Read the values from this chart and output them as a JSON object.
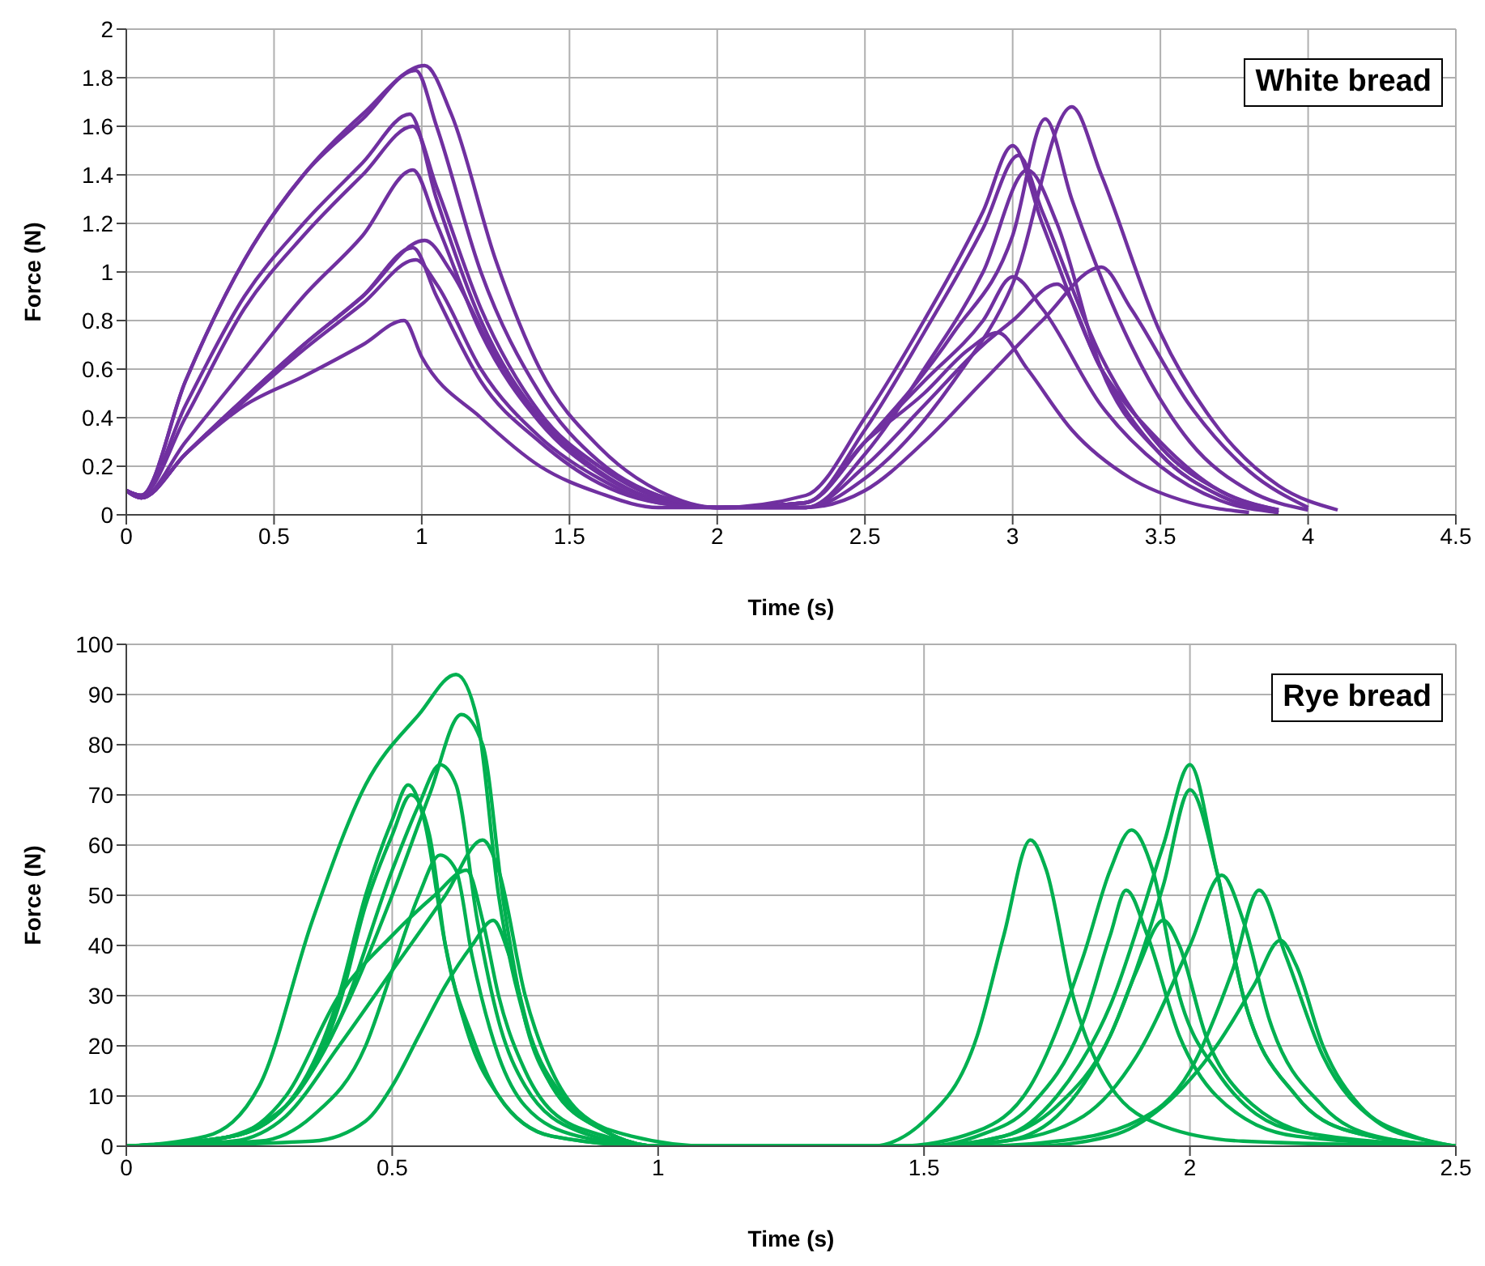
{
  "chart_data": [
    {
      "type": "line",
      "xlabel": "Time (s)",
      "ylabel": "Force (N)",
      "annotations": [
        "White bread"
      ],
      "xlim": [
        0,
        4.5
      ],
      "xticks": [
        0,
        0.5,
        1,
        1.5,
        2,
        2.5,
        3,
        3.5,
        4,
        4.5
      ],
      "ylim": [
        0,
        2
      ],
      "yticks": [
        0,
        0.2,
        0.4,
        0.6,
        0.8,
        1,
        1.2,
        1.4,
        1.6,
        1.8,
        2
      ],
      "grid": true,
      "marker": "none",
      "line_style": "solid",
      "series": [
        {
          "color": "#7030a0",
          "x": [
            0,
            0.05,
            0.2,
            0.4,
            0.6,
            0.8,
            1.01,
            1.1,
            1.25,
            1.4,
            1.6,
            1.8,
            2.0,
            2.3,
            2.5,
            2.8,
            3.0,
            3.2,
            3.3,
            3.5,
            3.7,
            3.9,
            4.1
          ],
          "values": [
            0.1,
            0.08,
            0.55,
            1.05,
            1.4,
            1.65,
            1.85,
            1.65,
            1.05,
            0.6,
            0.28,
            0.1,
            0.03,
            0.03,
            0.15,
            0.55,
            0.95,
            1.68,
            1.4,
            0.75,
            0.35,
            0.12,
            0.02
          ]
        },
        {
          "color": "#7030a0",
          "x": [
            0,
            0.05,
            0.2,
            0.4,
            0.6,
            0.8,
            0.98,
            1.05,
            1.2,
            1.4,
            1.6,
            1.8,
            2.0,
            2.3,
            2.5,
            2.8,
            3.0,
            3.11,
            3.2,
            3.4,
            3.6,
            3.8,
            4.0
          ],
          "values": [
            0.1,
            0.08,
            0.55,
            1.05,
            1.4,
            1.63,
            1.83,
            1.6,
            1.0,
            0.5,
            0.22,
            0.08,
            0.03,
            0.05,
            0.3,
            0.75,
            1.15,
            1.63,
            1.3,
            0.7,
            0.3,
            0.1,
            0.02
          ]
        },
        {
          "color": "#7030a0",
          "x": [
            0,
            0.05,
            0.2,
            0.4,
            0.6,
            0.8,
            0.96,
            1.05,
            1.2,
            1.4,
            1.6,
            1.8,
            2.0,
            2.3,
            2.5,
            2.7,
            2.9,
            3.0,
            3.1,
            3.3,
            3.5,
            3.7,
            3.9
          ],
          "values": [
            0.1,
            0.08,
            0.45,
            0.9,
            1.2,
            1.45,
            1.65,
            1.3,
            0.8,
            0.4,
            0.18,
            0.06,
            0.03,
            0.08,
            0.4,
            0.8,
            1.25,
            1.52,
            1.2,
            0.6,
            0.25,
            0.08,
            0.01
          ]
        },
        {
          "color": "#7030a0",
          "x": [
            0,
            0.05,
            0.2,
            0.4,
            0.6,
            0.8,
            0.97,
            1.05,
            1.2,
            1.4,
            1.6,
            1.8,
            2.0,
            2.3,
            2.5,
            2.7,
            2.9,
            3.02,
            3.1,
            3.3,
            3.5,
            3.7,
            3.9
          ],
          "values": [
            0.1,
            0.08,
            0.4,
            0.85,
            1.15,
            1.4,
            1.6,
            1.35,
            0.85,
            0.42,
            0.2,
            0.07,
            0.03,
            0.05,
            0.35,
            0.75,
            1.18,
            1.48,
            1.25,
            0.65,
            0.28,
            0.1,
            0.02
          ]
        },
        {
          "color": "#7030a0",
          "x": [
            0,
            0.05,
            0.2,
            0.4,
            0.6,
            0.8,
            0.97,
            1.05,
            1.2,
            1.4,
            1.6,
            1.8,
            2.0,
            2.3,
            2.5,
            2.7,
            2.9,
            3.05,
            3.15,
            3.3,
            3.5,
            3.7,
            3.9
          ],
          "values": [
            0.1,
            0.07,
            0.3,
            0.6,
            0.9,
            1.15,
            1.42,
            1.2,
            0.75,
            0.38,
            0.17,
            0.06,
            0.03,
            0.03,
            0.25,
            0.6,
            1.0,
            1.42,
            1.2,
            0.6,
            0.25,
            0.08,
            0.01
          ]
        },
        {
          "color": "#7030a0",
          "x": [
            0,
            0.05,
            0.2,
            0.4,
            0.6,
            0.8,
            1.01,
            1.1,
            1.25,
            1.4,
            1.6,
            1.8,
            2.0,
            2.3,
            2.5,
            2.7,
            2.9,
            3.1,
            3.3,
            3.4,
            3.6,
            3.8,
            4.0
          ],
          "values": [
            0.1,
            0.07,
            0.25,
            0.48,
            0.7,
            0.9,
            1.13,
            1.0,
            0.65,
            0.4,
            0.2,
            0.08,
            0.03,
            0.03,
            0.1,
            0.3,
            0.55,
            0.8,
            1.02,
            0.85,
            0.45,
            0.18,
            0.03
          ]
        },
        {
          "color": "#7030a0",
          "x": [
            0,
            0.05,
            0.2,
            0.4,
            0.6,
            0.8,
            0.97,
            1.05,
            1.2,
            1.4,
            1.6,
            1.8,
            2.0,
            2.3,
            2.5,
            2.7,
            2.9,
            3.0,
            3.1,
            3.3,
            3.5,
            3.7,
            3.9
          ],
          "values": [
            0.1,
            0.07,
            0.25,
            0.48,
            0.7,
            0.9,
            1.1,
            0.9,
            0.55,
            0.3,
            0.13,
            0.05,
            0.03,
            0.05,
            0.3,
            0.55,
            0.8,
            0.98,
            0.85,
            0.45,
            0.2,
            0.06,
            0.01
          ]
        },
        {
          "color": "#7030a0",
          "x": [
            0,
            0.05,
            0.2,
            0.4,
            0.6,
            0.8,
            0.98,
            1.05,
            1.2,
            1.4,
            1.6,
            1.8,
            2.0,
            2.3,
            2.5,
            2.7,
            2.9,
            3.0,
            3.15,
            3.3,
            3.5,
            3.7,
            3.9
          ],
          "values": [
            0.1,
            0.07,
            0.25,
            0.47,
            0.68,
            0.87,
            1.05,
            0.95,
            0.6,
            0.32,
            0.15,
            0.05,
            0.03,
            0.03,
            0.2,
            0.45,
            0.7,
            0.8,
            0.95,
            0.6,
            0.3,
            0.1,
            0.02
          ]
        },
        {
          "color": "#7030a0",
          "x": [
            0,
            0.05,
            0.2,
            0.4,
            0.6,
            0.8,
            0.94,
            1.0,
            1.2,
            1.4,
            1.6,
            1.8,
            2.0,
            2.3,
            2.5,
            2.7,
            2.85,
            2.95,
            3.05,
            3.2,
            3.4,
            3.6,
            3.8
          ],
          "values": [
            0.1,
            0.07,
            0.25,
            0.45,
            0.57,
            0.7,
            0.8,
            0.65,
            0.4,
            0.2,
            0.09,
            0.03,
            0.03,
            0.05,
            0.3,
            0.5,
            0.68,
            0.75,
            0.6,
            0.35,
            0.15,
            0.05,
            0.01
          ]
        }
      ]
    },
    {
      "type": "line",
      "xlabel": "Time (s)",
      "ylabel": "Force (N)",
      "annotations": [
        "Rye bread"
      ],
      "xlim": [
        0,
        2.5
      ],
      "xticks": [
        0,
        0.5,
        1,
        1.5,
        2,
        2.5
      ],
      "ylim": [
        0,
        100
      ],
      "yticks": [
        0,
        10,
        20,
        30,
        40,
        50,
        60,
        70,
        80,
        90,
        100
      ],
      "grid": true,
      "marker": "none",
      "line_style": "solid",
      "series": [
        {
          "color": "#00b050",
          "x": [
            0,
            0.15,
            0.25,
            0.35,
            0.45,
            0.55,
            0.62,
            0.66,
            0.7,
            0.75,
            0.8,
            0.9,
            1.0,
            1.5,
            1.65,
            1.75,
            1.85,
            1.95,
            2.0,
            2.05,
            2.1,
            2.2,
            2.3,
            2.5
          ],
          "values": [
            0,
            2,
            12,
            45,
            72,
            86,
            94,
            85,
            50,
            25,
            12,
            3,
            0,
            0,
            2,
            10,
            28,
            60,
            76,
            55,
            30,
            10,
            3,
            0
          ]
        },
        {
          "color": "#00b050",
          "x": [
            0,
            0.15,
            0.3,
            0.4,
            0.5,
            0.57,
            0.63,
            0.67,
            0.71,
            0.75,
            0.8,
            0.9,
            1.0,
            1.5,
            1.65,
            1.75,
            1.85,
            1.95,
            2.0,
            2.05,
            2.1,
            2.2,
            2.3,
            2.5
          ],
          "values": [
            0,
            1,
            8,
            25,
            50,
            70,
            86,
            80,
            48,
            25,
            12,
            3,
            0,
            0,
            1,
            6,
            22,
            52,
            71,
            55,
            30,
            10,
            3,
            0
          ]
        },
        {
          "color": "#00b050",
          "x": [
            0,
            0.2,
            0.3,
            0.4,
            0.5,
            0.55,
            0.59,
            0.62,
            0.66,
            0.7,
            0.75,
            0.85,
            1.0,
            1.45,
            1.6,
            1.7,
            1.8,
            1.85,
            1.89,
            1.93,
            1.98,
            2.05,
            2.2,
            2.5
          ],
          "values": [
            0,
            2,
            8,
            25,
            55,
            68,
            76,
            72,
            45,
            25,
            12,
            3,
            0,
            0,
            3,
            12,
            38,
            55,
            63,
            55,
            30,
            15,
            3,
            0
          ]
        },
        {
          "color": "#00b050",
          "x": [
            0,
            0.2,
            0.3,
            0.4,
            0.45,
            0.5,
            0.53,
            0.56,
            0.6,
            0.65,
            0.7,
            0.8,
            1.0,
            1.4,
            1.5,
            1.6,
            1.65,
            1.7,
            1.73,
            1.78,
            1.85,
            1.95,
            2.1,
            2.5
          ],
          "values": [
            0,
            2,
            8,
            30,
            50,
            65,
            72,
            65,
            40,
            20,
            10,
            2,
            0,
            0,
            5,
            22,
            42,
            61,
            55,
            30,
            12,
            4,
            1,
            0
          ]
        },
        {
          "color": "#00b050",
          "x": [
            0,
            0.2,
            0.3,
            0.4,
            0.45,
            0.5,
            0.535,
            0.57,
            0.6,
            0.65,
            0.7,
            0.8,
            1.0,
            1.5,
            1.65,
            1.8,
            1.9,
            2.0,
            2.06,
            2.1,
            2.15,
            2.25,
            2.35,
            2.5
          ],
          "values": [
            0,
            2,
            8,
            28,
            48,
            62,
            70,
            62,
            40,
            22,
            10,
            2,
            0,
            0,
            1,
            6,
            18,
            40,
            54,
            45,
            25,
            8,
            2,
            0
          ]
        },
        {
          "color": "#00b050",
          "x": [
            0,
            0.2,
            0.3,
            0.4,
            0.5,
            0.6,
            0.67,
            0.7,
            0.75,
            0.8,
            0.85,
            0.95,
            1.1,
            1.6,
            1.75,
            1.9,
            2.0,
            2.08,
            2.13,
            2.18,
            2.25,
            2.35,
            2.45,
            2.5
          ],
          "values": [
            0,
            1,
            6,
            20,
            35,
            50,
            61,
            55,
            30,
            15,
            7,
            2,
            0,
            0,
            1,
            5,
            15,
            35,
            51,
            38,
            18,
            5,
            1,
            0
          ]
        },
        {
          "color": "#00b050",
          "x": [
            0,
            0.25,
            0.35,
            0.45,
            0.5,
            0.55,
            0.59,
            0.62,
            0.65,
            0.7,
            0.75,
            0.85,
            1.0,
            1.5,
            1.6,
            1.7,
            1.8,
            1.85,
            1.88,
            1.92,
            1.98,
            2.05,
            2.2,
            2.5
          ],
          "values": [
            0,
            1,
            6,
            20,
            35,
            50,
            58,
            55,
            38,
            18,
            8,
            2,
            0,
            0,
            2,
            8,
            25,
            42,
            51,
            42,
            22,
            10,
            2,
            0
          ]
        },
        {
          "color": "#00b050",
          "x": [
            0,
            0.2,
            0.3,
            0.4,
            0.5,
            0.58,
            0.64,
            0.67,
            0.7,
            0.75,
            0.8,
            0.9,
            1.0,
            1.5,
            1.65,
            1.75,
            1.85,
            1.9,
            1.95,
            1.98,
            2.03,
            2.1,
            2.25,
            2.5
          ],
          "values": [
            0,
            2,
            10,
            30,
            42,
            50,
            55,
            45,
            30,
            15,
            7,
            2,
            0,
            0,
            2,
            8,
            22,
            35,
            45,
            40,
            22,
            10,
            2,
            0
          ]
        },
        {
          "color": "#00b050",
          "x": [
            0,
            0.35,
            0.45,
            0.5,
            0.55,
            0.6,
            0.65,
            0.69,
            0.72,
            0.76,
            0.82,
            0.9,
            1.0,
            1.7,
            1.85,
            1.95,
            2.05,
            2.12,
            2.17,
            2.2,
            2.25,
            2.32,
            2.42,
            2.5
          ],
          "values": [
            0,
            1,
            5,
            12,
            22,
            32,
            40,
            45,
            38,
            22,
            10,
            3,
            0,
            0,
            2,
            8,
            20,
            32,
            41,
            36,
            20,
            8,
            2,
            0
          ]
        }
      ]
    }
  ]
}
